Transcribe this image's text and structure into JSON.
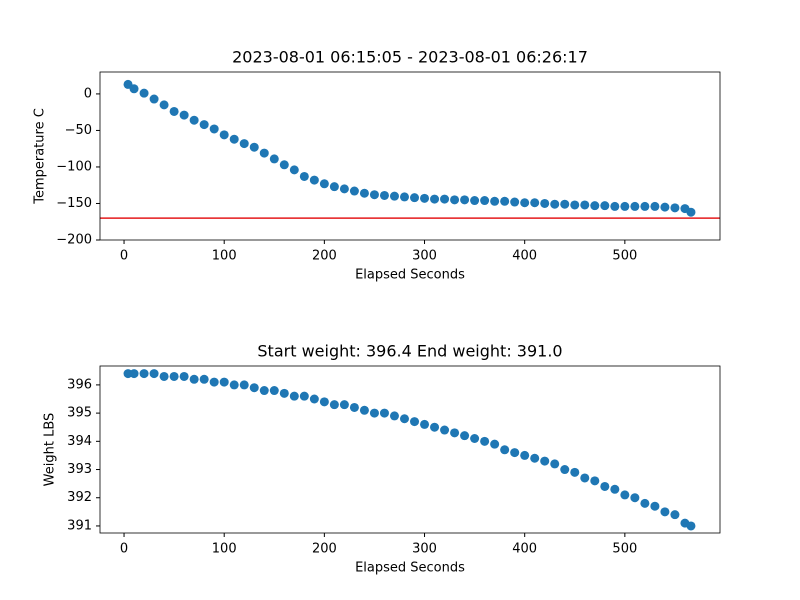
{
  "chart_data": [
    {
      "type": "scatter",
      "title": "2023-08-01 06:15:05 - 2023-08-01 06:26:17",
      "xlabel": "Elapsed Seconds",
      "ylabel": "Temperature C",
      "x": [
        4,
        10,
        20,
        30,
        40,
        50,
        60,
        70,
        80,
        90,
        100,
        110,
        120,
        130,
        140,
        150,
        160,
        170,
        180,
        190,
        200,
        210,
        220,
        230,
        240,
        250,
        260,
        270,
        280,
        290,
        300,
        310,
        320,
        330,
        340,
        350,
        360,
        370,
        380,
        390,
        400,
        410,
        420,
        430,
        440,
        450,
        460,
        470,
        480,
        490,
        500,
        510,
        520,
        530,
        540,
        550,
        560,
        566
      ],
      "series": [
        {
          "color": "#1f77b4",
          "values": [
            13,
            7,
            1,
            -7,
            -15,
            -24,
            -29,
            -36,
            -42,
            -48,
            -56,
            -62,
            -68,
            -73,
            -81,
            -89,
            -97,
            -104,
            -113,
            -118,
            -123,
            -127,
            -130,
            -133,
            -136,
            -138,
            -139,
            -140,
            -141,
            -142,
            -143,
            -144,
            -144,
            -145,
            -145,
            -146,
            -146,
            -147,
            -147,
            -148,
            -149,
            -149,
            -150,
            -151,
            -151,
            -152,
            -152,
            -153,
            -153,
            -154,
            -154,
            -154,
            -154,
            -154,
            -155,
            -156,
            -157,
            -162
          ]
        }
      ],
      "hline": {
        "value": -170,
        "color": "#e41a1c"
      },
      "xlim": [
        -24,
        595
      ],
      "xticks": [
        0,
        100,
        200,
        300,
        400,
        500
      ],
      "ylim": [
        -200,
        30
      ],
      "yticks": [
        {
          "value": -200,
          "label": "−200"
        },
        {
          "value": -150,
          "label": "−150"
        },
        {
          "value": -100,
          "label": "−100"
        },
        {
          "value": -50,
          "label": "−50"
        },
        0
      ]
    },
    {
      "type": "scatter",
      "title": "Start weight: 396.4 End weight: 391.0",
      "xlabel": "Elapsed Seconds",
      "ylabel": "Weight LBS",
      "x": [
        4,
        10,
        20,
        30,
        40,
        50,
        60,
        70,
        80,
        90,
        100,
        110,
        120,
        130,
        140,
        150,
        160,
        170,
        180,
        190,
        200,
        210,
        220,
        230,
        240,
        250,
        260,
        270,
        280,
        290,
        300,
        310,
        320,
        330,
        340,
        350,
        360,
        370,
        380,
        390,
        400,
        410,
        420,
        430,
        440,
        450,
        460,
        470,
        480,
        490,
        500,
        510,
        520,
        530,
        540,
        550,
        560,
        566
      ],
      "series": [
        {
          "color": "#1f77b4",
          "values": [
            396.4,
            396.4,
            396.4,
            396.4,
            396.3,
            396.3,
            396.3,
            396.2,
            396.2,
            396.1,
            396.1,
            396.0,
            396.0,
            395.9,
            395.8,
            395.8,
            395.7,
            395.6,
            395.6,
            395.5,
            395.4,
            395.3,
            395.3,
            395.2,
            395.1,
            395.0,
            395.0,
            394.9,
            394.8,
            394.7,
            394.6,
            394.5,
            394.4,
            394.3,
            394.2,
            394.1,
            394.0,
            393.9,
            393.7,
            393.6,
            393.5,
            393.4,
            393.3,
            393.2,
            393.0,
            392.9,
            392.7,
            392.6,
            392.4,
            392.3,
            392.1,
            392.0,
            391.8,
            391.7,
            391.5,
            391.4,
            391.1,
            391.0
          ]
        }
      ],
      "xlim": [
        -24,
        595
      ],
      "xticks": [
        0,
        100,
        200,
        300,
        400,
        500
      ],
      "ylim": [
        390.75,
        396.67
      ],
      "yticks": [
        391,
        392,
        393,
        394,
        395,
        396
      ]
    }
  ]
}
